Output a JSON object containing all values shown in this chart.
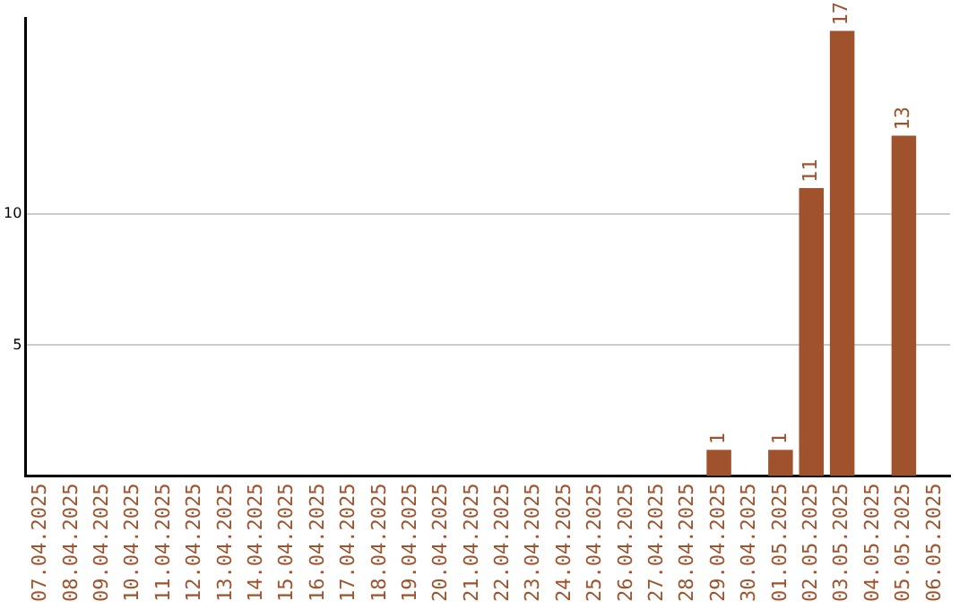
{
  "chart_data": {
    "type": "bar",
    "categories": [
      "07.04.2025",
      "08.04.2025",
      "09.04.2025",
      "10.04.2025",
      "11.04.2025",
      "12.04.2025",
      "13.04.2025",
      "14.04.2025",
      "15.04.2025",
      "16.04.2025",
      "17.04.2025",
      "18.04.2025",
      "19.04.2025",
      "20.04.2025",
      "21.04.2025",
      "22.04.2025",
      "23.04.2025",
      "24.04.2025",
      "25.04.2025",
      "26.04.2025",
      "27.04.2025",
      "28.04.2025",
      "29.04.2025",
      "30.04.2025",
      "01.05.2025",
      "02.05.2025",
      "03.05.2025",
      "04.05.2025",
      "05.05.2025",
      "06.05.2025"
    ],
    "values": [
      0,
      0,
      0,
      0,
      0,
      0,
      0,
      0,
      0,
      0,
      0,
      0,
      0,
      0,
      0,
      0,
      0,
      0,
      0,
      0,
      0,
      0,
      1,
      0,
      1,
      11,
      17,
      0,
      13,
      0
    ],
    "value_labels": [
      null,
      null,
      null,
      null,
      null,
      null,
      null,
      null,
      null,
      null,
      null,
      null,
      null,
      null,
      null,
      null,
      null,
      null,
      null,
      null,
      null,
      null,
      "1",
      null,
      "1",
      "11",
      "17",
      null,
      "13",
      null
    ],
    "color": "#a0522d",
    "ylim": [
      0,
      17.5
    ],
    "yticks": [
      5,
      10
    ],
    "grid": "y",
    "legend": false
  }
}
